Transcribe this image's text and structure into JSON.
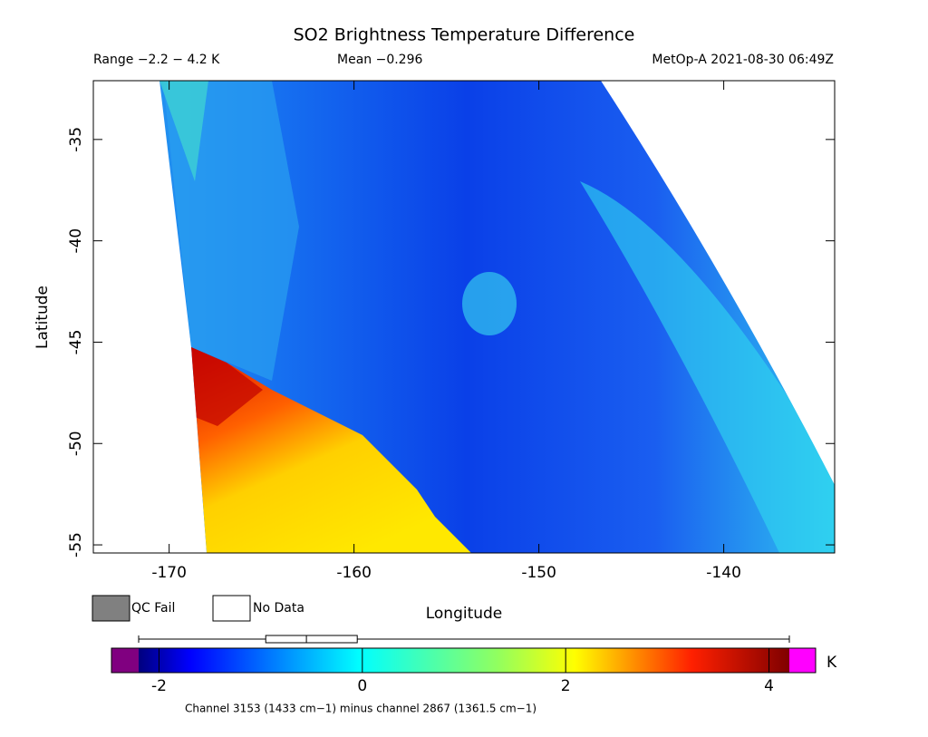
{
  "header": {
    "title": "SO2 Brightness Temperature Difference",
    "range": "Range −2.2 − 4.2 K",
    "mean": "Mean −0.296",
    "source": "MetOp-A 2021-08-30 06:49Z"
  },
  "axes": {
    "x_label": "Longitude",
    "y_label": "Latitude",
    "xlim": [
      -174.1,
      -134
    ],
    "ylim": [
      -55.4,
      -32.1
    ],
    "xticks": [
      -170,
      -160,
      -150,
      -140
    ],
    "yticks": [
      -35,
      -40,
      -45,
      -50,
      -55
    ]
  },
  "legend": [
    {
      "label": "QC Fail",
      "color": "#808080"
    },
    {
      "label": "No Data",
      "color": "#ffffff"
    }
  ],
  "colorbar": {
    "lim": [
      -2.2,
      4.2
    ],
    "ticks": [
      -2,
      0,
      2,
      4
    ],
    "unit": "K",
    "under_color": "#800080",
    "over_color": "#ff00ff",
    "boxplot": {
      "min": -2.2,
      "q1": -0.95,
      "median": -0.55,
      "q3": -0.05,
      "max": 4.2
    }
  },
  "footnote": "Channel 3153 (1433 cm−1) minus channel 2867 (1361.5 cm−1)"
}
